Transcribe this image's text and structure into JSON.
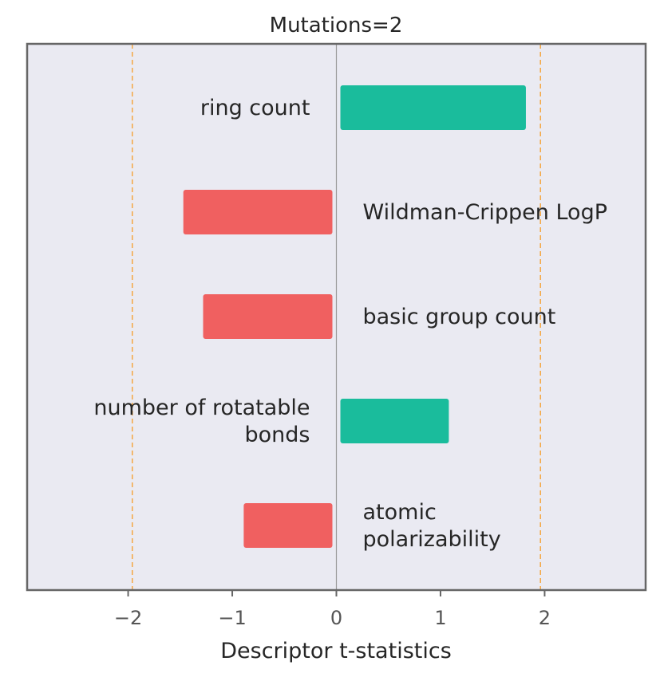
{
  "chart_data": {
    "type": "bar",
    "orientation": "horizontal",
    "title": "Mutations=2",
    "xlabel": "Descriptor t-statistics",
    "ylabel": "",
    "xlim": [
      -2.97,
      2.97
    ],
    "xticks": [
      -2,
      -1,
      0,
      1,
      2
    ],
    "xtick_labels": [
      "−2",
      "−1",
      "0",
      "1",
      "2"
    ],
    "reference_lines": [
      -1.96,
      1.96
    ],
    "grid": false,
    "categories": [
      [
        "ring count"
      ],
      [
        "Wildman-Crippen LogP"
      ],
      [
        "basic group count"
      ],
      [
        "number of rotatable",
        "bonds"
      ],
      [
        "atomic",
        "polarizability"
      ]
    ],
    "values": [
      1.82,
      -1.47,
      -1.28,
      1.08,
      -0.89
    ],
    "colors": {
      "positive": "#1abc9c",
      "negative": "#f06060",
      "reference_line": "#f5a742",
      "zero_line": "#999999",
      "plot_background": "#eaeaf2",
      "frame": "#666666"
    }
  }
}
